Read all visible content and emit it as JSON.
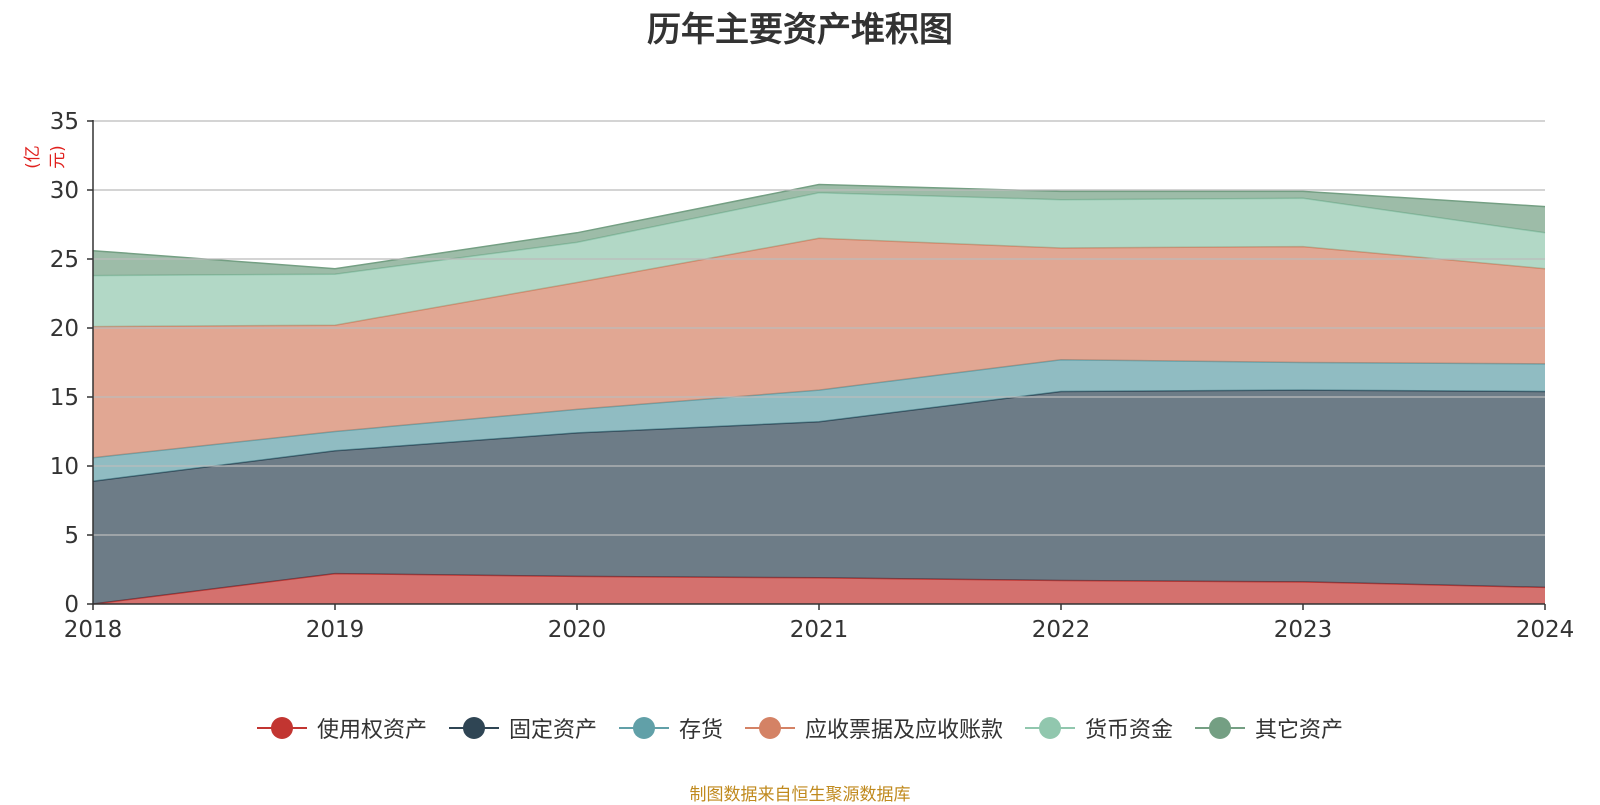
{
  "title": "历年主要资产堆积图",
  "unit_label": "(亿元)",
  "footer": "制图数据来自恒生聚源数据库",
  "chart_data": {
    "type": "area",
    "stacked": true,
    "title": "历年主要资产堆积图",
    "ylabel": "(亿元)",
    "categories": [
      "2018",
      "2019",
      "2020",
      "2021",
      "2022",
      "2023",
      "2024"
    ],
    "ylim": [
      0,
      35
    ],
    "yticks": [
      0,
      5,
      10,
      15,
      20,
      25,
      30,
      35
    ],
    "grid": true,
    "legend_position": "bottom",
    "series": [
      {
        "name": "使用权资产",
        "color": "#c23531",
        "values": [
          0.0,
          2.2,
          2.0,
          1.9,
          1.7,
          1.6,
          1.2
        ]
      },
      {
        "name": "固定资产",
        "color": "#2f4554",
        "values": [
          8.9,
          8.9,
          10.4,
          11.3,
          13.7,
          13.9,
          14.2
        ]
      },
      {
        "name": "存货",
        "color": "#61a0a8",
        "values": [
          1.7,
          1.4,
          1.7,
          2.3,
          2.3,
          2.0,
          2.0
        ]
      },
      {
        "name": "应收票据及应收账款",
        "color": "#d48265",
        "values": [
          9.5,
          7.7,
          9.2,
          11.0,
          8.1,
          8.4,
          6.9
        ]
      },
      {
        "name": "货币资金",
        "color": "#91c7ae",
        "values": [
          3.7,
          3.7,
          2.9,
          3.3,
          3.5,
          3.5,
          2.6
        ]
      },
      {
        "name": "其它资产",
        "color": "#749f83",
        "values": [
          1.8,
          0.4,
          0.7,
          0.6,
          0.6,
          0.5,
          1.9
        ]
      }
    ]
  }
}
